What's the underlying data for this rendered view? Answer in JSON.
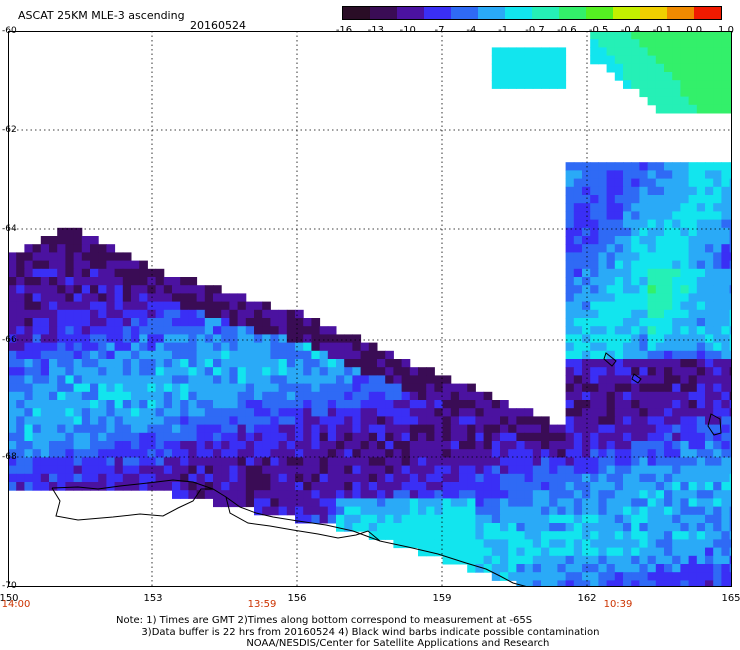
{
  "header": {
    "title": "ASCAT 25KM MLE-3 ascending",
    "date": "20160524"
  },
  "colorbar": {
    "labels": [
      "-16",
      "-13",
      "-10",
      "-7",
      "-4",
      "-1",
      "-0.7",
      "-0.6",
      "-0.5",
      "-0.4",
      "-0.1",
      "0.0",
      "1.0"
    ],
    "colors": [
      "#2a0d26",
      "#3a0c55",
      "#4b12a0",
      "#3a2ff5",
      "#2f6af5",
      "#2aaaf7",
      "#12e5ee",
      "#25f0b6",
      "#33f06a",
      "#55f022",
      "#c4f000",
      "#f0d000",
      "#f08a00",
      "#f01a00"
    ]
  },
  "axes": {
    "lat_labels": [
      "-60",
      "-62",
      "-64",
      "-66",
      "-68",
      "-70"
    ],
    "lon_labels": [
      "150",
      "153",
      "156",
      "159",
      "162",
      "165"
    ]
  },
  "time_labels": [
    "14:00",
    "13:59",
    "10:39"
  ],
  "notes": {
    "line1": "Note: 1) Times are GMT 2)Times along bottom correspond to measurement at -65S",
    "line2": "        3)Data buffer is 22 hrs from 20160524 4) Black wind barbs indicate possible contamination",
    "line3": "                                         NOAA/NESDIS/Center for Satellite Applications and Research"
  }
}
